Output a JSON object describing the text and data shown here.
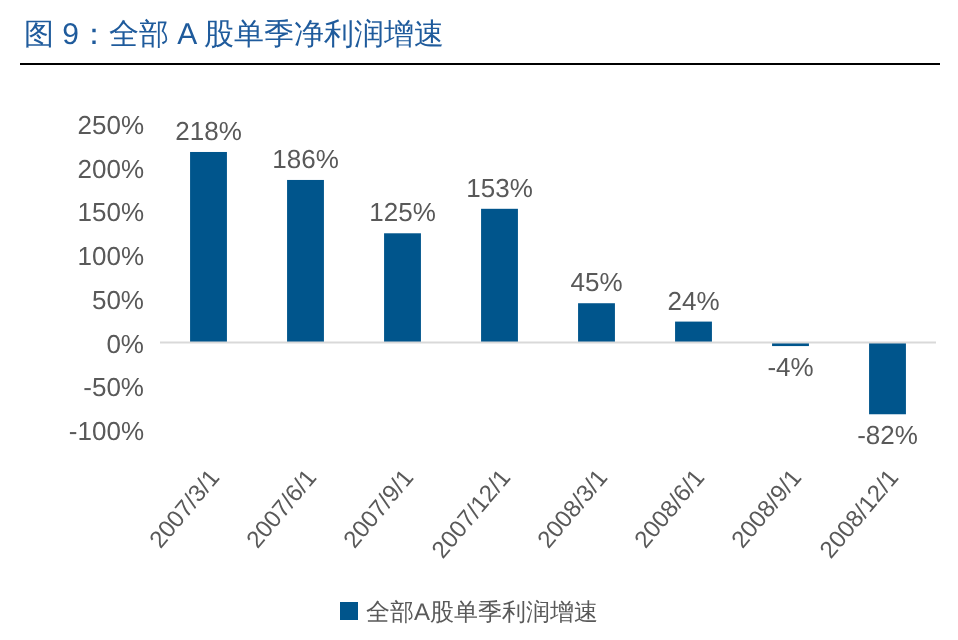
{
  "chart_data": {
    "type": "bar",
    "title": "图 9：全部 A 股单季净利润增速",
    "categories": [
      "2007/3/1",
      "2007/6/1",
      "2007/9/1",
      "2007/12/1",
      "2008/3/1",
      "2008/6/1",
      "2008/9/1",
      "2008/12/1"
    ],
    "series": [
      {
        "name": "全部A股单季利润增速",
        "color": "#00558c",
        "values": [
          218,
          186,
          125,
          153,
          45,
          24,
          -4,
          -82
        ],
        "value_labels": [
          "218%",
          "186%",
          "125%",
          "153%",
          "45%",
          "24%",
          "-4%",
          "-82%"
        ]
      }
    ],
    "ylim": [
      -100,
      250
    ],
    "yticks": [
      {
        "value": -100,
        "label": "-100%"
      },
      {
        "value": -50,
        "label": "-50%"
      },
      {
        "value": 0,
        "label": "0%"
      },
      {
        "value": 50,
        "label": "50%"
      },
      {
        "value": 100,
        "label": "100%"
      },
      {
        "value": 150,
        "label": "150%"
      },
      {
        "value": 200,
        "label": "200%"
      },
      {
        "value": 250,
        "label": "250%"
      }
    ],
    "legend": "bottom"
  }
}
